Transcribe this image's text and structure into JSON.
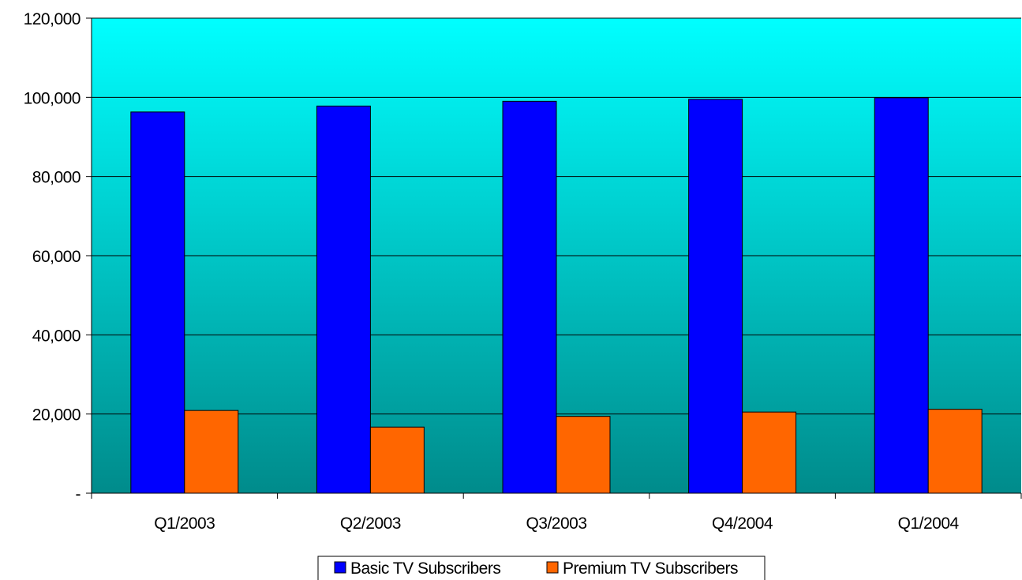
{
  "chart_data": {
    "type": "bar",
    "title": "",
    "xlabel": "",
    "ylabel": "",
    "categories": [
      "Q1/2003",
      "Q2/2003",
      "Q3/2003",
      "Q4/2004",
      "Q1/2004"
    ],
    "series": [
      {
        "name": "Basic TV Subscribers",
        "color": "#0000FF",
        "values": [
          96300,
          97800,
          99000,
          99500,
          99900
        ]
      },
      {
        "name": "Premium TV Subscribers",
        "color": "#FF6600",
        "values": [
          20900,
          16700,
          19400,
          20500,
          21200
        ]
      }
    ],
    "ylim": [
      0,
      120000
    ],
    "yticks": [
      0,
      20000,
      40000,
      60000,
      80000,
      100000,
      120000
    ],
    "ytick_labels": [
      "-",
      "20,000",
      "40,000",
      "60,000",
      "80,000",
      "100,000",
      "120,000"
    ],
    "grid": true,
    "legend_position": "bottom",
    "plot_background": {
      "gradient_top": "#00FFFF",
      "gradient_bottom": "#008B8B"
    }
  }
}
